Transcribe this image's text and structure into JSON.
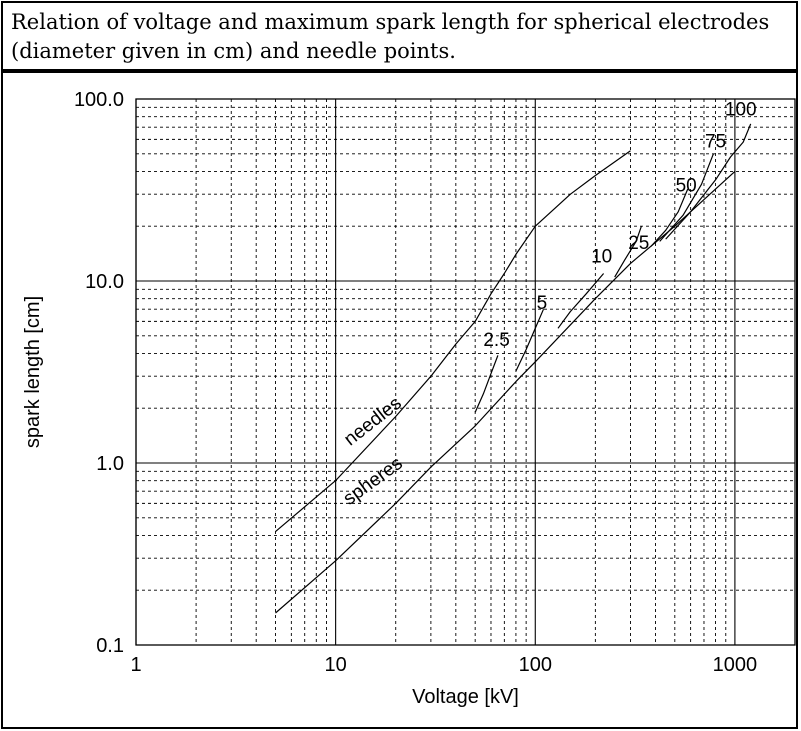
{
  "caption": "Relation of voltage and maximum spark length for spherical electrodes (diameter given in cm) and needle points.",
  "chart_data": {
    "type": "line",
    "title": "",
    "xlabel": "Voltage [kV]",
    "ylabel": "spark length [cm]",
    "xscale": "log",
    "yscale": "log",
    "xlim": [
      1,
      2000
    ],
    "ylim": [
      0.1,
      100
    ],
    "xticks": [
      {
        "value": 1,
        "label": "1"
      },
      {
        "value": 10,
        "label": "10"
      },
      {
        "value": 100,
        "label": "100"
      },
      {
        "value": 1000,
        "label": "1000"
      }
    ],
    "yticks": [
      {
        "value": 0.1,
        "label": "0.1"
      },
      {
        "value": 1,
        "label": "1.0"
      },
      {
        "value": 10,
        "label": "10.0"
      },
      {
        "value": 100,
        "label": "100.0"
      }
    ],
    "grid": true,
    "series": [
      {
        "name": "needles",
        "x": [
          5,
          10,
          20,
          30,
          40,
          50,
          60,
          70,
          80,
          100,
          150,
          200,
          300
        ],
        "y": [
          0.42,
          0.8,
          1.8,
          3.0,
          4.5,
          6.0,
          8.5,
          11.0,
          14.0,
          20.0,
          30.0,
          38.0,
          52.0
        ]
      },
      {
        "name": "spheres",
        "x": [
          5,
          10,
          20,
          30,
          50,
          80,
          100,
          200,
          300,
          500,
          700,
          1000
        ],
        "y": [
          0.15,
          0.29,
          0.6,
          0.95,
          1.6,
          2.8,
          3.6,
          8.0,
          12.5,
          20.0,
          28.0,
          40.0
        ]
      },
      {
        "name": "2.5",
        "x": [
          50,
          55,
          60,
          65
        ],
        "y": [
          1.9,
          2.4,
          3.1,
          3.9
        ]
      },
      {
        "name": "5",
        "x": [
          80,
          90,
          100,
          110
        ],
        "y": [
          3.2,
          4.2,
          5.5,
          7.0
        ]
      },
      {
        "name": "10",
        "x": [
          130,
          150,
          180,
          220
        ],
        "y": [
          5.5,
          6.8,
          8.5,
          11.0
        ]
      },
      {
        "name": "25",
        "x": [
          250,
          280,
          320,
          340
        ],
        "y": [
          10.5,
          13.0,
          16.5,
          20.0
        ]
      },
      {
        "name": "50",
        "x": [
          380,
          450,
          520,
          580
        ],
        "y": [
          15.5,
          19.0,
          24.0,
          32.0
        ]
      },
      {
        "name": "75",
        "x": [
          420,
          550,
          680,
          780
        ],
        "y": [
          16.5,
          23.0,
          34.0,
          50.0
        ]
      },
      {
        "name": "100",
        "x": [
          450,
          600,
          800,
          950,
          1100,
          1200
        ],
        "y": [
          17.0,
          24.0,
          36.0,
          48.0,
          58.0,
          73.0
        ]
      }
    ],
    "annotations": [
      {
        "text": "needles",
        "x": 16,
        "y": 1.6,
        "angle": -38
      },
      {
        "text": "spheres",
        "x": 16,
        "y": 0.75,
        "angle": -36
      },
      {
        "text": "2.5",
        "x": 64,
        "y": 4.4,
        "angle": 0
      },
      {
        "text": "5",
        "x": 108,
        "y": 7.0,
        "angle": 0
      },
      {
        "text": "10",
        "x": 215,
        "y": 12.6,
        "angle": 0
      },
      {
        "text": "25",
        "x": 330,
        "y": 15.0,
        "angle": 0
      },
      {
        "text": "50",
        "x": 570,
        "y": 31.0,
        "angle": 0
      },
      {
        "text": "75",
        "x": 800,
        "y": 54.0,
        "angle": 0
      },
      {
        "text": "100",
        "x": 1070,
        "y": 81.0,
        "angle": 0
      }
    ],
    "line_color": "#000000"
  }
}
